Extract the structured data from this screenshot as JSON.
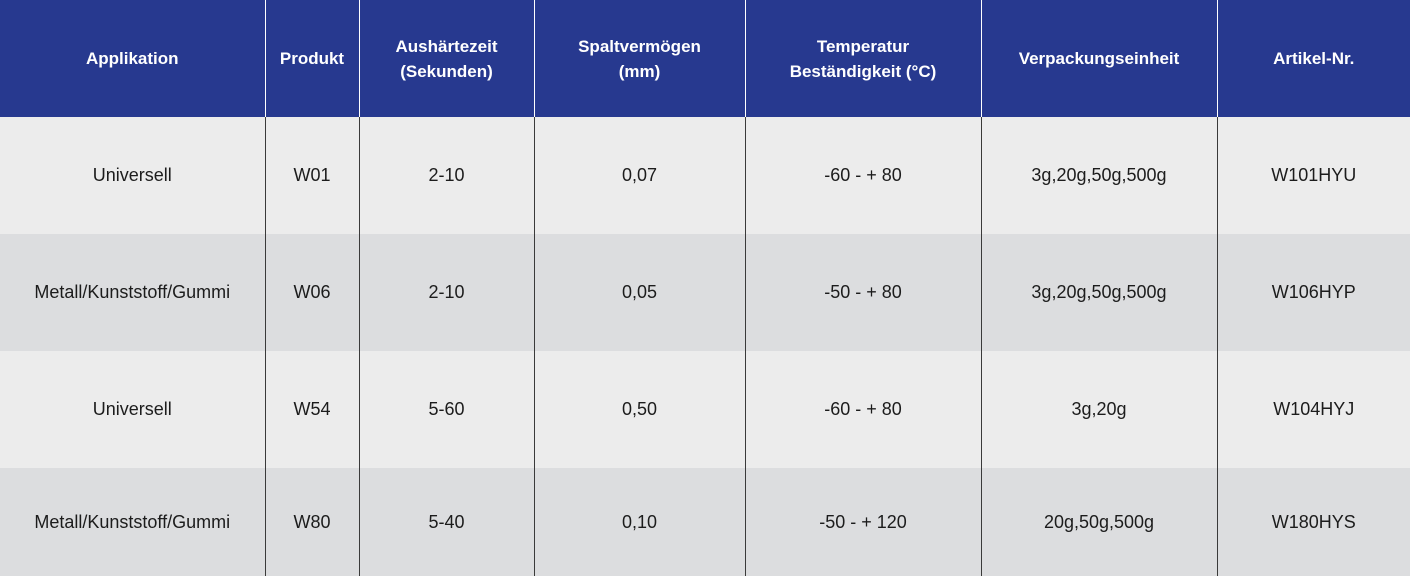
{
  "header": {
    "applikation": [
      "Applikation"
    ],
    "produkt": [
      "Produkt"
    ],
    "aushaertezeit": [
      "Aushärtezeit",
      "(Sekunden)"
    ],
    "spaltvermoegen": [
      "Spaltvermögen",
      "(mm)"
    ],
    "temperatur": [
      "Temperatur",
      "Beständigkeit (°C)"
    ],
    "verpackung": [
      "Verpackungseinheit"
    ],
    "artikel": [
      "Artikel-Nr."
    ]
  },
  "rows": [
    {
      "applikation": "Universell",
      "produkt": "W01",
      "aushaertezeit": "2-10",
      "spaltvermoegen": "0,07",
      "temperatur": "-60 - + 80",
      "verpackung": "3g,20g,50g,500g",
      "artikel": "W101HYU"
    },
    {
      "applikation": "Metall/Kunststoff/Gummi",
      "produkt": "W06",
      "aushaertezeit": "2-10",
      "spaltvermoegen": "0,05",
      "temperatur": "-50 - + 80",
      "verpackung": "3g,20g,50g,500g",
      "artikel": "W106HYP"
    },
    {
      "applikation": "Universell",
      "produkt": "W54",
      "aushaertezeit": "5-60",
      "spaltvermoegen": "0,50",
      "temperatur": "-60 - + 80",
      "verpackung": "3g,20g",
      "artikel": "W104HYJ"
    },
    {
      "applikation": "Metall/Kunststoff/Gummi",
      "produkt": "W80",
      "aushaertezeit": "5-40",
      "spaltvermoegen": "0,10",
      "temperatur": "-50 - + 120",
      "verpackung": "20g,50g,500g",
      "artikel": "W180HYS"
    }
  ]
}
